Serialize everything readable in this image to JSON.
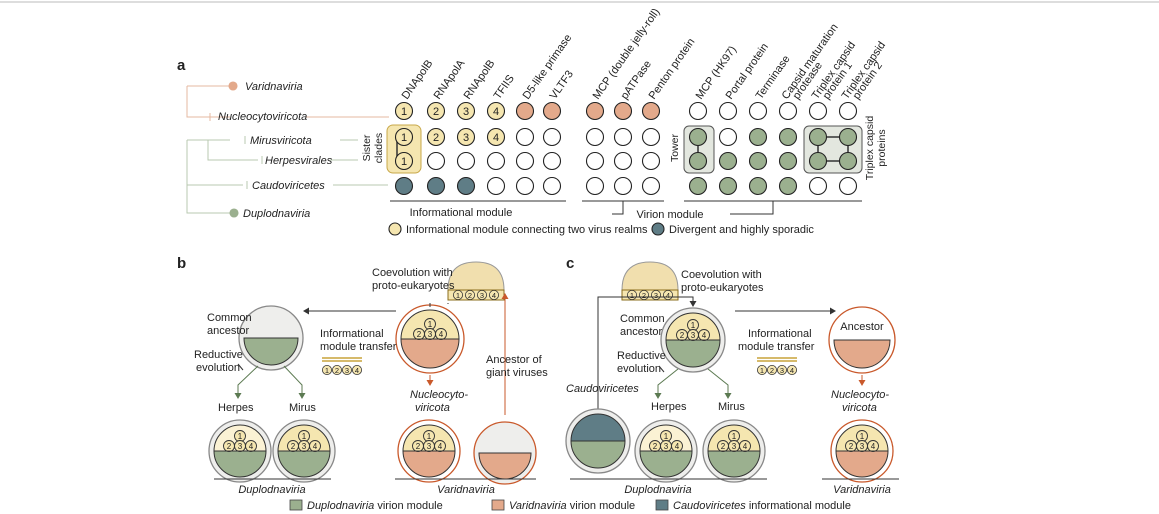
{
  "colors": {
    "cream": "#f5e6b0",
    "creamFill": "#f6e7b3",
    "orange": "#e3a98b",
    "orangeStroke": "#c9592b",
    "green": "#9bb08f",
    "greenStroke": "#5c7a52",
    "blue": "#5f7d86",
    "line": "#222222",
    "grey": "#eeeeee"
  },
  "panel_a": {
    "label": "a",
    "tree": [
      "Varidnaviria",
      "Nucleocytoviricota",
      "Mirusviricota",
      "Herpesvirales",
      "Caudoviricetes",
      "Duplodnaviria"
    ],
    "sister_clades": [
      "Sister",
      "clades"
    ],
    "tower": "Tower",
    "triplex_side": [
      "Triplex capsid",
      "proteins"
    ],
    "columns": [
      "DNApolB",
      "RNApolA",
      "RNApolB",
      "TFIIS",
      "D5-like primase",
      "VLTF3",
      "MCP (double jelly-roll)",
      "pATPase",
      "Penton protein",
      "MCP (HK97)",
      "Portal protein",
      "Terminase",
      "Capsid maturation protease",
      "Triplex capsid protein 1",
      "Triplex capsid protein 2"
    ],
    "numbers": [
      "1",
      "2",
      "3",
      "4"
    ],
    "group_labels": {
      "informational": "Informational module",
      "virion": "Virion module"
    },
    "legend": [
      {
        "text": "Informational module connecting two virus realms",
        "color": "#f5e6b0"
      },
      {
        "text": "Divergent and highly sporadic",
        "color": "#5f7d86"
      }
    ]
  },
  "panel_b": {
    "label": "b",
    "coevolution": [
      "Coevolution with",
      "proto-eukaryotes"
    ],
    "common_ancestor": [
      "Common",
      "ancestor"
    ],
    "reductive": [
      "Reductive",
      "evolution"
    ],
    "transfer": [
      "Informational",
      "module transfer"
    ],
    "giant": [
      "Ancestor of",
      "giant viruses"
    ],
    "herpes": "Herpes",
    "mirus": "Mirus",
    "nucleo": [
      "Nucleocyto-",
      "viricota"
    ],
    "realm_left": "Duplodnaviria",
    "realm_right": "Varidnaviria"
  },
  "panel_c": {
    "label": "c",
    "coevolution": [
      "Coevolution with",
      "proto-eukaryotes"
    ],
    "common_ancestor": [
      "Common",
      "ancestor"
    ],
    "reductive": [
      "Reductive",
      "evolution"
    ],
    "transfer": [
      "Informational",
      "module transfer"
    ],
    "caudo": "Caudoviricetes",
    "herpes": "Herpes",
    "mirus": "Mirus",
    "ancestor": "Ancestor",
    "nucleo": [
      "Nucleocyto-",
      "viricota"
    ],
    "realm_left": "Duplodnaviria",
    "realm_right": "Varidnaviria"
  },
  "bottom_legend": [
    {
      "italic": "Duplodnaviria",
      "rest": " virion module",
      "color": "#9bb08f"
    },
    {
      "italic": "Varidnaviria",
      "rest": " virion module",
      "color": "#e3a98b"
    },
    {
      "italic": "Caudoviricetes",
      "rest": " informational module",
      "color": "#5f7d86"
    }
  ]
}
